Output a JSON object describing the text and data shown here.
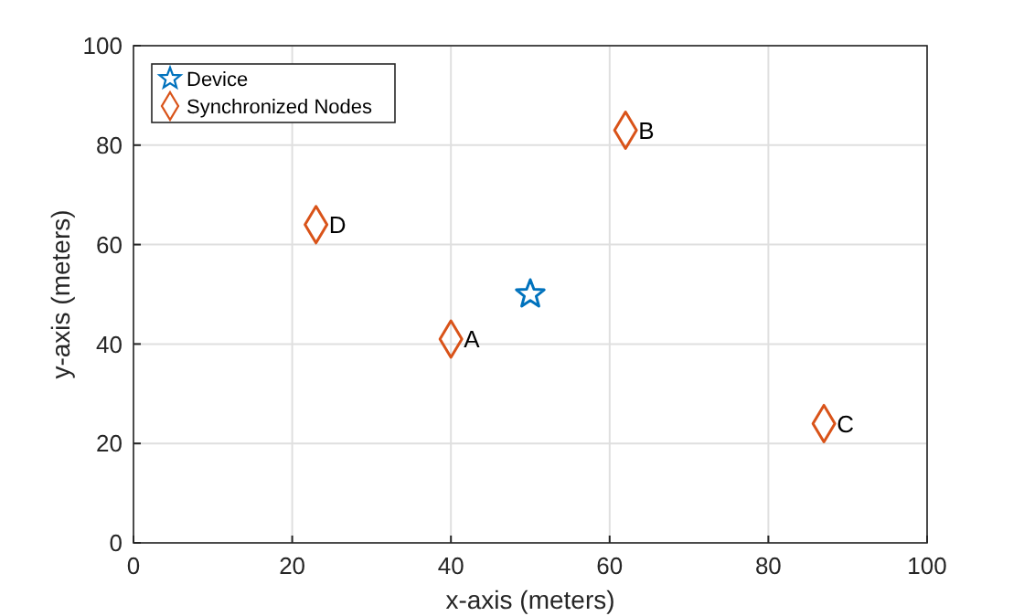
{
  "chart_data": {
    "type": "scatter",
    "xlabel": "x-axis (meters)",
    "ylabel": "y-axis (meters)",
    "xlim": [
      0,
      100
    ],
    "ylim": [
      0,
      100
    ],
    "xticks": [
      0,
      20,
      40,
      60,
      80,
      100
    ],
    "yticks": [
      0,
      20,
      40,
      60,
      80,
      100
    ],
    "grid": true,
    "legend": "top left",
    "series": [
      {
        "name": "Device",
        "color": "#0072bd",
        "marker": "star",
        "x": [
          50
        ],
        "values": [
          50
        ]
      },
      {
        "name": "Synchronized Nodes",
        "color": "#d95319",
        "marker": "diamond",
        "x": [
          40,
          62,
          87,
          23
        ],
        "values": [
          41,
          83,
          24,
          64
        ]
      }
    ],
    "annotations": [
      {
        "text": "A",
        "x": 40,
        "y": 41
      },
      {
        "text": "B",
        "x": 62,
        "y": 83
      },
      {
        "text": "C",
        "x": 87,
        "y": 24
      },
      {
        "text": "D",
        "x": 23,
        "y": 64
      }
    ]
  }
}
